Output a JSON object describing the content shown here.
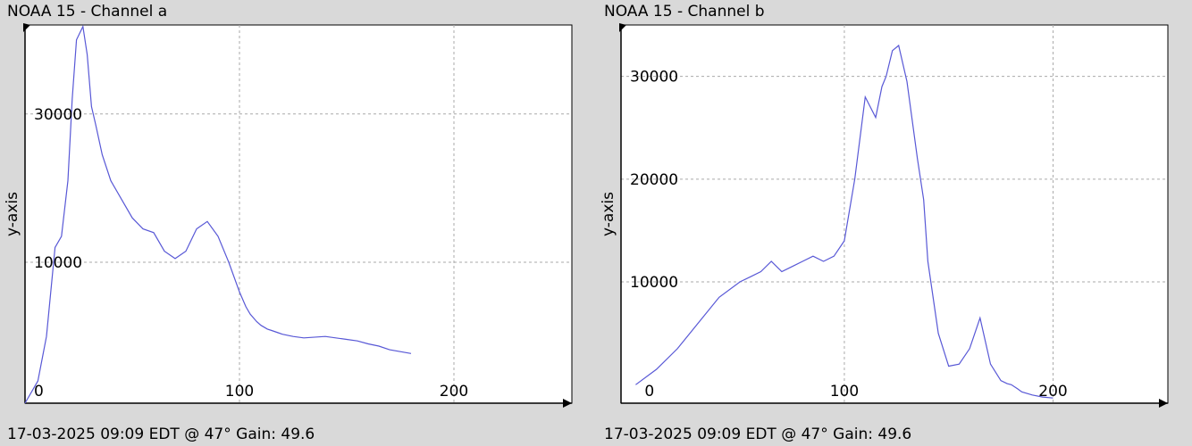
{
  "chart_data": [
    {
      "type": "line",
      "title": "NOAA 15 - Channel a",
      "footer": "17-03-2025 09:09 EDT @ 47° Gain: 49.6",
      "xlabel": "",
      "ylabel": "y-axis",
      "xlim": [
        0,
        255
      ],
      "ylim": [
        -9000,
        42000
      ],
      "x_ticks": [
        0,
        100,
        200
      ],
      "y_ticks": [
        10000,
        30000
      ],
      "x_tick_labels": [
        "0",
        "100",
        "200"
      ],
      "y_tick_labels": [
        "10000",
        "30000"
      ],
      "grid": true,
      "series_color": "#5858d6",
      "series": [
        {
          "x": [
            0,
            6,
            10,
            14,
            17,
            20,
            22,
            24,
            27,
            29,
            31,
            33,
            36,
            40,
            45,
            50,
            55,
            60,
            65,
            70,
            75,
            80,
            85,
            90,
            95,
            100,
            103,
            105,
            108,
            110,
            113,
            115,
            118,
            120,
            125,
            130,
            140,
            150,
            155,
            160,
            165,
            170,
            180
          ],
          "y": [
            -9000,
            -6000,
            0,
            12000,
            13500,
            21000,
            32000,
            40000,
            41800,
            38000,
            31000,
            28500,
            24500,
            21000,
            18500,
            16000,
            14500,
            14000,
            11500,
            10500,
            11500,
            14500,
            15500,
            13500,
            10000,
            6000,
            4000,
            3000,
            2000,
            1500,
            1000,
            800,
            500,
            300,
            0,
            -200,
            0,
            -400,
            -600,
            -1000,
            -1300,
            -1800,
            -2300
          ]
        }
      ]
    },
    {
      "type": "line",
      "title": "NOAA 15 - Channel b",
      "footer": "17-03-2025 09:09 EDT @ 47° Gain: 49.6",
      "xlabel": "",
      "ylabel": "y-axis",
      "xlim": [
        -7,
        255
      ],
      "ylim": [
        -1800,
        35000
      ],
      "x_ticks": [
        0,
        100,
        200
      ],
      "y_ticks": [
        10000,
        20000,
        30000
      ],
      "x_tick_labels": [
        "0",
        "100",
        "200"
      ],
      "y_tick_labels": [
        "10000",
        "20000",
        "30000"
      ],
      "grid": true,
      "series_color": "#5858d6",
      "series": [
        {
          "x": [
            0,
            10,
            20,
            30,
            40,
            50,
            55,
            60,
            65,
            70,
            75,
            80,
            85,
            90,
            95,
            100,
            105,
            110,
            115,
            118,
            120,
            123,
            126,
            130,
            135,
            138,
            140,
            145,
            150,
            155,
            160,
            165,
            170,
            175,
            178,
            180,
            183,
            185,
            190,
            195,
            200
          ],
          "y": [
            0,
            1500,
            3500,
            6000,
            8500,
            10000,
            10500,
            11000,
            12000,
            11000,
            11500,
            12000,
            12500,
            12000,
            12500,
            14000,
            20000,
            28000,
            26000,
            29000,
            30000,
            32500,
            33000,
            29500,
            22000,
            18000,
            12000,
            5000,
            1800,
            2000,
            3500,
            6500,
            2000,
            400,
            100,
            0,
            -400,
            -700,
            -1000,
            -1200,
            -1300
          ]
        }
      ]
    }
  ]
}
